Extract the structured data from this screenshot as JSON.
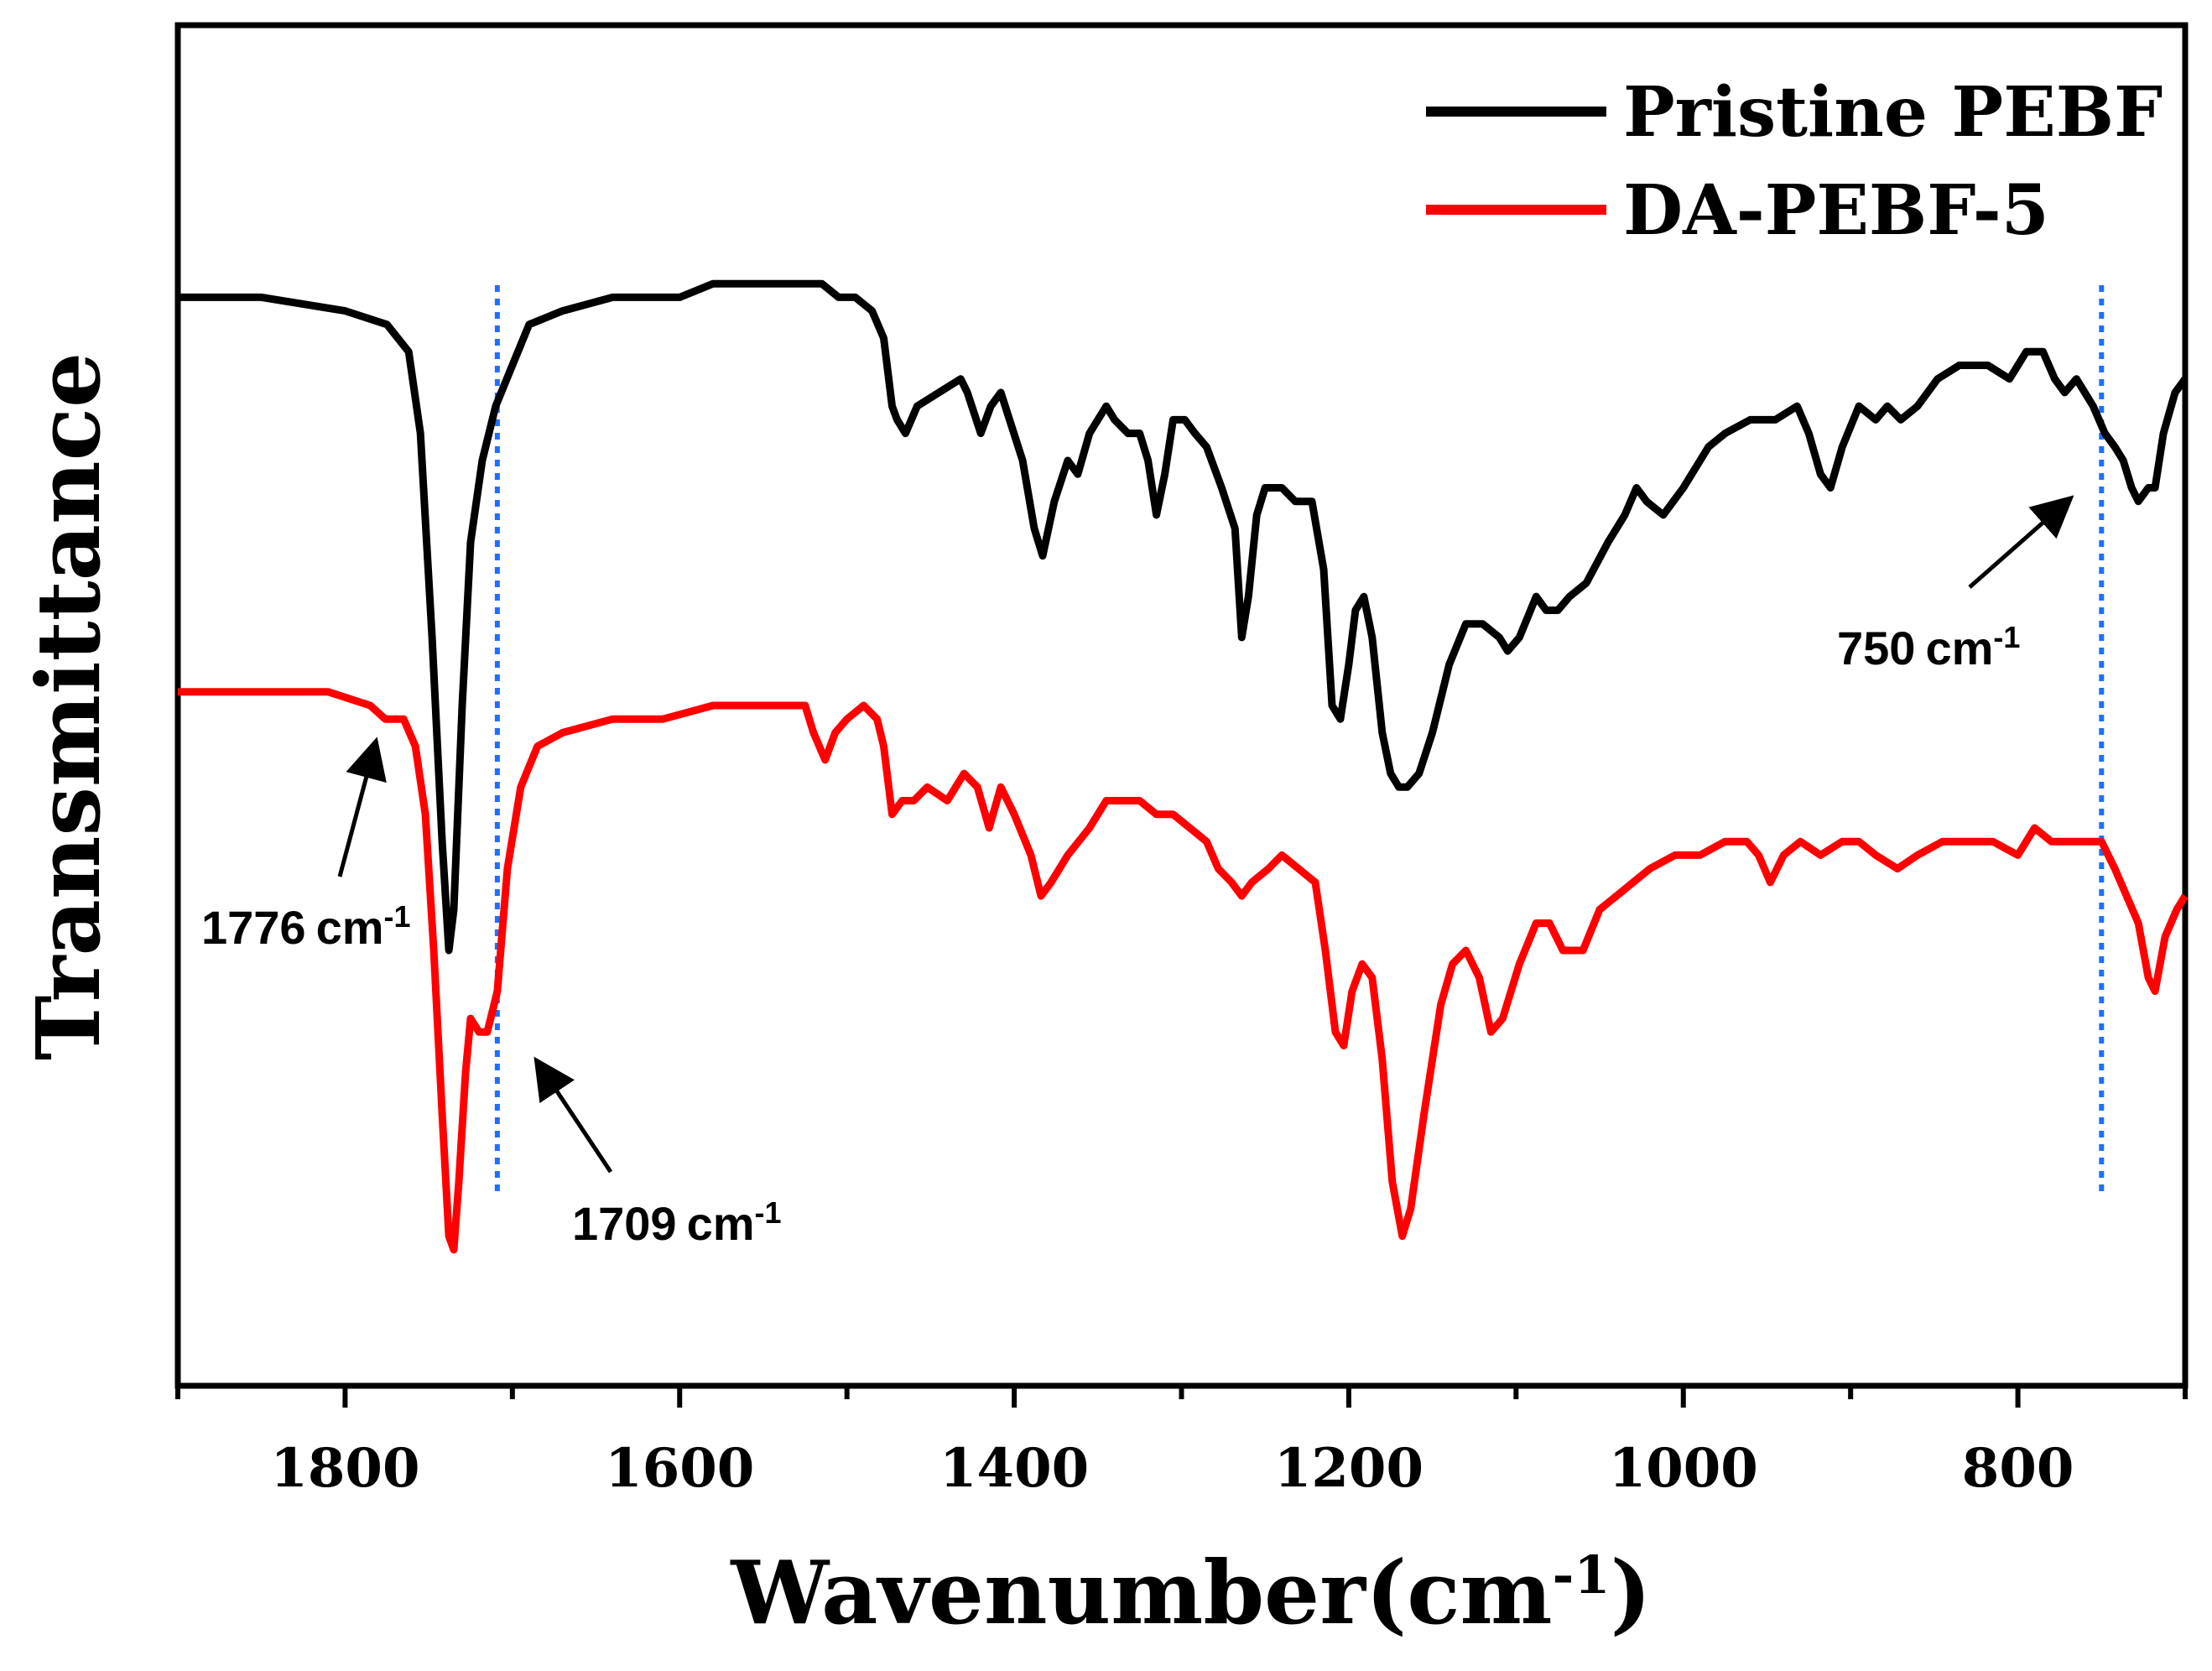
{
  "chart_data": {
    "type": "line",
    "title": "",
    "xlabel": "Wavenumber",
    "xlabel_unit": "(cm-1)",
    "ylabel": "Transmittance",
    "xlim": [
      1900,
      700
    ],
    "ylim": [
      0,
      1
    ],
    "x_reversed": true,
    "y_ticks_shown": false,
    "x_ticks": [
      1800,
      1600,
      1400,
      1200,
      1000,
      800
    ],
    "legend_position": "top-right",
    "colors": {
      "axis": "#000000",
      "pristine": "#000000",
      "da": "#ff0000",
      "marker_line": "#1e6fff"
    },
    "series": [
      {
        "name": "Pristine PEBF",
        "color": "#000000",
        "points": [
          [
            1900,
            0.8
          ],
          [
            1850,
            0.8
          ],
          [
            1800,
            0.79
          ],
          [
            1775,
            0.78
          ],
          [
            1762,
            0.76
          ],
          [
            1755,
            0.7
          ],
          [
            1748,
            0.55
          ],
          [
            1742,
            0.4
          ],
          [
            1738,
            0.32
          ],
          [
            1735,
            0.35
          ],
          [
            1730,
            0.5
          ],
          [
            1725,
            0.62
          ],
          [
            1718,
            0.68
          ],
          [
            1710,
            0.72
          ],
          [
            1700,
            0.75
          ],
          [
            1690,
            0.78
          ],
          [
            1670,
            0.79
          ],
          [
            1640,
            0.8
          ],
          [
            1600,
            0.8
          ],
          [
            1580,
            0.81
          ],
          [
            1540,
            0.81
          ],
          [
            1515,
            0.81
          ],
          [
            1505,
            0.8
          ],
          [
            1495,
            0.8
          ],
          [
            1485,
            0.79
          ],
          [
            1478,
            0.77
          ],
          [
            1473,
            0.72
          ],
          [
            1470,
            0.71
          ],
          [
            1465,
            0.7
          ],
          [
            1458,
            0.72
          ],
          [
            1445,
            0.73
          ],
          [
            1432,
            0.74
          ],
          [
            1428,
            0.73
          ],
          [
            1420,
            0.7
          ],
          [
            1414,
            0.72
          ],
          [
            1408,
            0.73
          ],
          [
            1395,
            0.68
          ],
          [
            1388,
            0.63
          ],
          [
            1383,
            0.61
          ],
          [
            1376,
            0.65
          ],
          [
            1368,
            0.68
          ],
          [
            1362,
            0.67
          ],
          [
            1355,
            0.7
          ],
          [
            1345,
            0.72
          ],
          [
            1340,
            0.71
          ],
          [
            1332,
            0.7
          ],
          [
            1325,
            0.7
          ],
          [
            1320,
            0.68
          ],
          [
            1315,
            0.64
          ],
          [
            1310,
            0.67
          ],
          [
            1305,
            0.71
          ],
          [
            1298,
            0.71
          ],
          [
            1292,
            0.7
          ],
          [
            1285,
            0.69
          ],
          [
            1276,
            0.66
          ],
          [
            1268,
            0.63
          ],
          [
            1264,
            0.55
          ],
          [
            1260,
            0.58
          ],
          [
            1255,
            0.64
          ],
          [
            1250,
            0.66
          ],
          [
            1240,
            0.66
          ],
          [
            1232,
            0.65
          ],
          [
            1222,
            0.65
          ],
          [
            1215,
            0.6
          ],
          [
            1210,
            0.5
          ],
          [
            1205,
            0.49
          ],
          [
            1200,
            0.53
          ],
          [
            1196,
            0.57
          ],
          [
            1191,
            0.58
          ],
          [
            1186,
            0.55
          ],
          [
            1180,
            0.48
          ],
          [
            1175,
            0.45
          ],
          [
            1170,
            0.44
          ],
          [
            1165,
            0.44
          ],
          [
            1158,
            0.45
          ],
          [
            1150,
            0.48
          ],
          [
            1140,
            0.53
          ],
          [
            1130,
            0.56
          ],
          [
            1120,
            0.56
          ],
          [
            1110,
            0.55
          ],
          [
            1105,
            0.54
          ],
          [
            1098,
            0.55
          ],
          [
            1088,
            0.58
          ],
          [
            1082,
            0.57
          ],
          [
            1075,
            0.57
          ],
          [
            1068,
            0.58
          ],
          [
            1058,
            0.59
          ],
          [
            1045,
            0.62
          ],
          [
            1035,
            0.64
          ],
          [
            1028,
            0.66
          ],
          [
            1022,
            0.65
          ],
          [
            1012,
            0.64
          ],
          [
            1000,
            0.66
          ],
          [
            985,
            0.69
          ],
          [
            975,
            0.7
          ],
          [
            960,
            0.71
          ],
          [
            945,
            0.71
          ],
          [
            932,
            0.72
          ],
          [
            925,
            0.7
          ],
          [
            918,
            0.67
          ],
          [
            912,
            0.66
          ],
          [
            905,
            0.69
          ],
          [
            895,
            0.72
          ],
          [
            885,
            0.71
          ],
          [
            878,
            0.72
          ],
          [
            870,
            0.71
          ],
          [
            860,
            0.72
          ],
          [
            848,
            0.74
          ],
          [
            835,
            0.75
          ],
          [
            818,
            0.75
          ],
          [
            805,
            0.74
          ],
          [
            795,
            0.76
          ],
          [
            785,
            0.76
          ],
          [
            778,
            0.74
          ],
          [
            772,
            0.73
          ],
          [
            765,
            0.74
          ],
          [
            755,
            0.72
          ],
          [
            748,
            0.7
          ],
          [
            742,
            0.69
          ],
          [
            737,
            0.68
          ],
          [
            732,
            0.66
          ],
          [
            728,
            0.65
          ],
          [
            722,
            0.66
          ],
          [
            718,
            0.66
          ],
          [
            713,
            0.7
          ],
          [
            706,
            0.73
          ],
          [
            700,
            0.74
          ]
        ]
      },
      {
        "name": "DA-PEBF-5",
        "color": "#ff0000",
        "points": [
          [
            1900,
            0.51
          ],
          [
            1850,
            0.51
          ],
          [
            1810,
            0.51
          ],
          [
            1785,
            0.5
          ],
          [
            1776,
            0.49
          ],
          [
            1765,
            0.49
          ],
          [
            1758,
            0.47
          ],
          [
            1752,
            0.42
          ],
          [
            1747,
            0.32
          ],
          [
            1742,
            0.2
          ],
          [
            1738,
            0.11
          ],
          [
            1735,
            0.1
          ],
          [
            1732,
            0.15
          ],
          [
            1728,
            0.23
          ],
          [
            1725,
            0.27
          ],
          [
            1720,
            0.26
          ],
          [
            1715,
            0.26
          ],
          [
            1709,
            0.29
          ],
          [
            1703,
            0.38
          ],
          [
            1695,
            0.44
          ],
          [
            1685,
            0.47
          ],
          [
            1670,
            0.48
          ],
          [
            1640,
            0.49
          ],
          [
            1610,
            0.49
          ],
          [
            1580,
            0.5
          ],
          [
            1540,
            0.5
          ],
          [
            1525,
            0.5
          ],
          [
            1520,
            0.48
          ],
          [
            1513,
            0.46
          ],
          [
            1507,
            0.48
          ],
          [
            1500,
            0.49
          ],
          [
            1490,
            0.5
          ],
          [
            1482,
            0.49
          ],
          [
            1478,
            0.47
          ],
          [
            1473,
            0.42
          ],
          [
            1467,
            0.43
          ],
          [
            1460,
            0.43
          ],
          [
            1452,
            0.44
          ],
          [
            1440,
            0.43
          ],
          [
            1430,
            0.45
          ],
          [
            1422,
            0.44
          ],
          [
            1415,
            0.41
          ],
          [
            1408,
            0.44
          ],
          [
            1400,
            0.42
          ],
          [
            1390,
            0.39
          ],
          [
            1384,
            0.36
          ],
          [
            1378,
            0.37
          ],
          [
            1368,
            0.39
          ],
          [
            1355,
            0.41
          ],
          [
            1345,
            0.43
          ],
          [
            1335,
            0.43
          ],
          [
            1325,
            0.43
          ],
          [
            1315,
            0.42
          ],
          [
            1305,
            0.42
          ],
          [
            1295,
            0.41
          ],
          [
            1285,
            0.4
          ],
          [
            1278,
            0.38
          ],
          [
            1270,
            0.37
          ],
          [
            1264,
            0.36
          ],
          [
            1258,
            0.37
          ],
          [
            1248,
            0.38
          ],
          [
            1240,
            0.39
          ],
          [
            1230,
            0.38
          ],
          [
            1220,
            0.37
          ],
          [
            1214,
            0.32
          ],
          [
            1208,
            0.26
          ],
          [
            1203,
            0.25
          ],
          [
            1198,
            0.29
          ],
          [
            1192,
            0.31
          ],
          [
            1186,
            0.3
          ],
          [
            1180,
            0.24
          ],
          [
            1174,
            0.15
          ],
          [
            1168,
            0.11
          ],
          [
            1163,
            0.13
          ],
          [
            1155,
            0.2
          ],
          [
            1145,
            0.28
          ],
          [
            1138,
            0.31
          ],
          [
            1130,
            0.32
          ],
          [
            1122,
            0.3
          ],
          [
            1115,
            0.26
          ],
          [
            1108,
            0.27
          ],
          [
            1098,
            0.31
          ],
          [
            1088,
            0.34
          ],
          [
            1080,
            0.34
          ],
          [
            1072,
            0.32
          ],
          [
            1060,
            0.32
          ],
          [
            1050,
            0.35
          ],
          [
            1040,
            0.36
          ],
          [
            1030,
            0.37
          ],
          [
            1020,
            0.38
          ],
          [
            1005,
            0.39
          ],
          [
            990,
            0.39
          ],
          [
            975,
            0.4
          ],
          [
            962,
            0.4
          ],
          [
            955,
            0.39
          ],
          [
            948,
            0.37
          ],
          [
            940,
            0.39
          ],
          [
            930,
            0.4
          ],
          [
            918,
            0.39
          ],
          [
            905,
            0.4
          ],
          [
            895,
            0.4
          ],
          [
            885,
            0.39
          ],
          [
            872,
            0.38
          ],
          [
            860,
            0.39
          ],
          [
            845,
            0.4
          ],
          [
            830,
            0.4
          ],
          [
            815,
            0.4
          ],
          [
            800,
            0.39
          ],
          [
            790,
            0.41
          ],
          [
            780,
            0.4
          ],
          [
            770,
            0.4
          ],
          [
            760,
            0.4
          ],
          [
            750,
            0.4
          ],
          [
            742,
            0.38
          ],
          [
            735,
            0.36
          ],
          [
            728,
            0.34
          ],
          [
            722,
            0.3
          ],
          [
            718,
            0.29
          ],
          [
            712,
            0.33
          ],
          [
            705,
            0.35
          ],
          [
            700,
            0.36
          ]
        ]
      }
    ],
    "vertical_markers": [
      1709,
      750
    ],
    "annotations": [
      {
        "num": "1776",
        "unit": "cm",
        "exp": "-1"
      },
      {
        "num": "1709",
        "unit": "cm",
        "exp": "-1"
      },
      {
        "num": "750",
        "unit": "cm",
        "exp": "-1"
      }
    ],
    "superscript": "-1",
    "xlabel_open": "(cm",
    "xlabel_close": ")"
  }
}
